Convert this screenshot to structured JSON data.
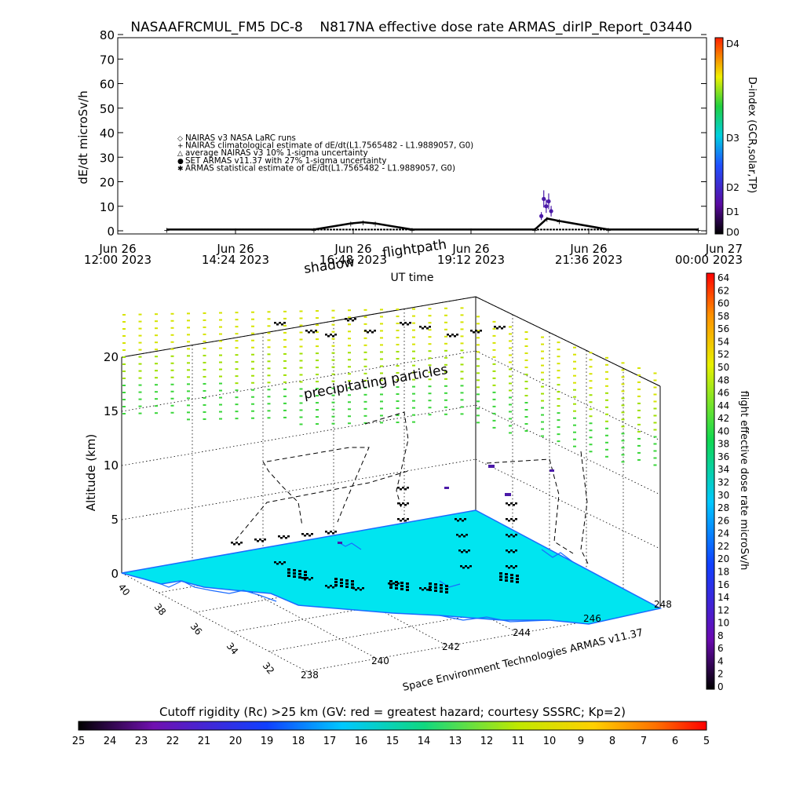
{
  "header": {
    "title": "NASAAFRCMUL_FM5 DC-8    N817NA effective dose rate ARMAS_dirIP_Report_03440"
  },
  "top_chart": {
    "ylabel": "dE/dt microSv/h",
    "xlabel": "UT time",
    "yticks": [
      "80",
      "70",
      "60",
      "50",
      "40",
      "30",
      "20",
      "10",
      "0"
    ],
    "xticks": [
      {
        "line1": "Jun 26",
        "line2": "12:00 2023"
      },
      {
        "line1": "Jun 26",
        "line2": "14:24 2023"
      },
      {
        "line1": "Jun 26",
        "line2": "16:48 2023"
      },
      {
        "line1": "Jun 26",
        "line2": "19:12 2023"
      },
      {
        "line1": "Jun 26",
        "line2": "21:36 2023"
      },
      {
        "line1": "Jun 27",
        "line2": "00:00 2023"
      }
    ],
    "legend": [
      {
        "marker": "◇",
        "text": "NAIRAS v3 NASA LaRC runs"
      },
      {
        "marker": "+",
        "text": "NAIRAS climatological estimate of dE/dt(L1.7565482 - L1.9889057, G0)"
      },
      {
        "marker": "△",
        "text": "average NAIRAS v3 10% 1-sigma uncertainty"
      },
      {
        "marker": "●",
        "text": "SET ARMAS v11.37 with 27% 1-sigma uncertainty"
      },
      {
        "marker": "✱",
        "text": "ARMAS statistical estimate of dE/dt(L1.7565482 - L1.9889057, G0)"
      }
    ],
    "dindex_label": "D-index (GCR,solar,TP)",
    "dindex_ticks": [
      "D4",
      "D3",
      "D2",
      "D1",
      "D0"
    ]
  },
  "chart_data": [
    {
      "type": "scatter",
      "title": "NASAAFRCMUL_FM5 DC-8    N817NA effective dose rate ARMAS_dirIP_Report_03440",
      "xlabel": "UT time",
      "ylabel": "dE/dt microSv/h",
      "ylim": [
        0,
        80
      ],
      "xlim": [
        "2023-06-26T12:00",
        "2023-06-27T00:00"
      ],
      "series": [
        {
          "name": "NAIRAS climatological estimate of dE/dt(L1.7565482 - L1.9889057, G0)",
          "x": [
            "2023-06-26T13:00",
            "2023-06-26T16:00",
            "2023-06-26T16:45",
            "2023-06-26T17:00",
            "2023-06-26T17:15",
            "2023-06-26T18:00",
            "2023-06-26T20:30",
            "2023-06-26T20:45",
            "2023-06-26T21:00",
            "2023-06-26T22:00",
            "2023-06-26T23:50"
          ],
          "y": [
            0.5,
            0.5,
            3,
            3.5,
            3,
            0.5,
            0.5,
            5,
            4,
            0.5,
            0.5
          ]
        },
        {
          "name": "SET ARMAS v11.37 with 27% 1-sigma uncertainty",
          "x": [
            "2023-06-26T20:38",
            "2023-06-26T20:41",
            "2023-06-26T20:44",
            "2023-06-26T20:47",
            "2023-06-26T20:50"
          ],
          "y": [
            6,
            13,
            10,
            12,
            8
          ]
        }
      ]
    },
    {
      "type": "scatter",
      "title": "",
      "zlabel": "Altitude (km)",
      "zlim": [
        0,
        20
      ],
      "zticks": [
        0,
        5,
        10,
        15,
        20
      ],
      "lat_ticks": [
        40,
        38,
        36,
        34,
        32
      ],
      "lon_ticks": [
        238,
        240,
        242,
        244,
        246,
        248
      ],
      "annotations": [
        "shadow",
        "flightpath",
        "precipitating particles"
      ],
      "colorbar_label": "flight effective dose rate microSv/h",
      "colorbar_range": [
        0,
        64
      ]
    }
  ],
  "scene": {
    "shadow_label": "shadow",
    "flightpath_label": "flightpath",
    "precip_label": "precipitating particles",
    "zlabel": "Altitude (km)",
    "zticks": [
      "0",
      "5",
      "10",
      "15",
      "20"
    ],
    "lat_ticks": [
      "40",
      "38",
      "36",
      "34",
      "32"
    ],
    "lon_ticks": [
      "238",
      "240",
      "242",
      "244",
      "246",
      "248"
    ],
    "credit": "Space Environment Technologies ARMAS v11.37"
  },
  "right_colorbar": {
    "label": "flight effective dose rate microSv/h",
    "ticks": [
      "64",
      "62",
      "60",
      "58",
      "56",
      "54",
      "52",
      "50",
      "48",
      "46",
      "44",
      "42",
      "40",
      "38",
      "36",
      "34",
      "32",
      "30",
      "28",
      "26",
      "24",
      "22",
      "20",
      "18",
      "16",
      "14",
      "12",
      "10",
      "8",
      "6",
      "4",
      "2",
      "0"
    ]
  },
  "bottom_colorbar": {
    "title": "Cutoff rigidity (Rc) >25 km (GV: red = greatest hazard; courtesy SSSRC; Kp=2)",
    "ticks": [
      "25",
      "24",
      "23",
      "22",
      "21",
      "20",
      "19",
      "18",
      "17",
      "16",
      "15",
      "14",
      "13",
      "12",
      "11",
      "10",
      "9",
      "8",
      "7",
      "6",
      "5"
    ]
  },
  "colors": {
    "ocean": "#00e5f0",
    "land_outline": "#1a6bff",
    "precip_low": "#c8e800",
    "precip_high": "#33dd33",
    "armas_point": "#4b1aa8"
  }
}
